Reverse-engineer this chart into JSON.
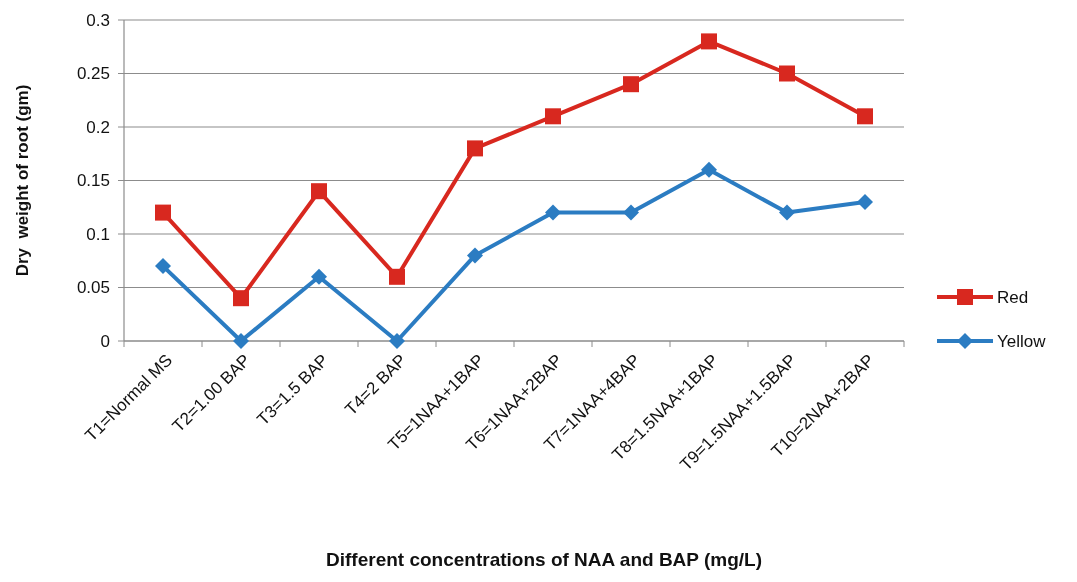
{
  "chart_data": {
    "type": "line",
    "xlabel": "Different concentrations of NAA and BAP (mg/L)",
    "ylabel": "Dry  weight of root (gm)",
    "categories": [
      "T1=Normal MS",
      "T2=1.00 BAP",
      "T3=1.5 BAP",
      "T4=2 BAP",
      "T5=1NAA+1BAP",
      "T6=1NAA+2BAP",
      "T7=1NAA+4BAP",
      "T8=1.5NAA+1BAP",
      "T9=1.5NAA+1.5BAP",
      "T10=2NAA+2BAP"
    ],
    "series": [
      {
        "name": "Red",
        "color": "#d8281f",
        "marker": "square",
        "values": [
          0.12,
          0.04,
          0.14,
          0.06,
          0.18,
          0.21,
          0.24,
          0.28,
          0.25,
          0.21
        ]
      },
      {
        "name": "Yellow",
        "color": "#2b7cc2",
        "marker": "diamond",
        "values": [
          0.07,
          0,
          0.06,
          0,
          0.08,
          0.12,
          0.12,
          0.16,
          0.12,
          0.13
        ]
      }
    ],
    "ylim": [
      0,
      0.3
    ],
    "yticks": [
      0,
      0.05,
      0.1,
      0.15,
      0.2,
      0.25,
      0.3
    ],
    "grid": "y",
    "legend": "right",
    "line_style": "solid"
  }
}
